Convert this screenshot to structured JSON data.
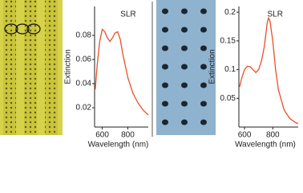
{
  "chart_data": [
    {
      "type": "line",
      "annotation": "SLR",
      "x_label": "Wavelength (nm)",
      "y_label": "Extinction",
      "x": [
        545,
        560,
        580,
        600,
        620,
        640,
        660,
        680,
        700,
        720,
        740,
        760,
        780,
        800,
        840,
        880,
        920,
        960
      ],
      "series": [
        {
          "color": "#e8502a",
          "values": [
            0.035,
            0.055,
            0.075,
            0.085,
            0.083,
            0.078,
            0.075,
            0.078,
            0.082,
            0.083,
            0.077,
            0.065,
            0.055,
            0.045,
            0.032,
            0.024,
            0.018,
            0.014
          ]
        }
      ],
      "xlim": [
        540,
        960
      ],
      "xticks": [
        600,
        800
      ],
      "ylim": [
        0.004,
        0.104
      ],
      "yticks": [
        0.02,
        0.04,
        0.06,
        0.08
      ]
    },
    {
      "type": "line",
      "annotation": "SLR",
      "x_label": "Wavelength (nm)",
      "y_label": "Extinction",
      "x": [
        565,
        580,
        600,
        620,
        640,
        660,
        680,
        700,
        720,
        740,
        760,
        770,
        780,
        800,
        820,
        840,
        880,
        920,
        960,
        980
      ],
      "series": [
        {
          "color": "#e8502a",
          "values": [
            0.07,
            0.085,
            0.1,
            0.106,
            0.105,
            0.1,
            0.095,
            0.1,
            0.115,
            0.14,
            0.18,
            0.19,
            0.185,
            0.15,
            0.1,
            0.065,
            0.03,
            0.015,
            0.008,
            0.006
          ]
        }
      ],
      "xlim": [
        560,
        980
      ],
      "xticks": [
        600,
        800
      ],
      "ylim": [
        0,
        0.21
      ],
      "yticks": [
        0.05,
        0.1,
        0.15,
        0.2
      ]
    }
  ]
}
